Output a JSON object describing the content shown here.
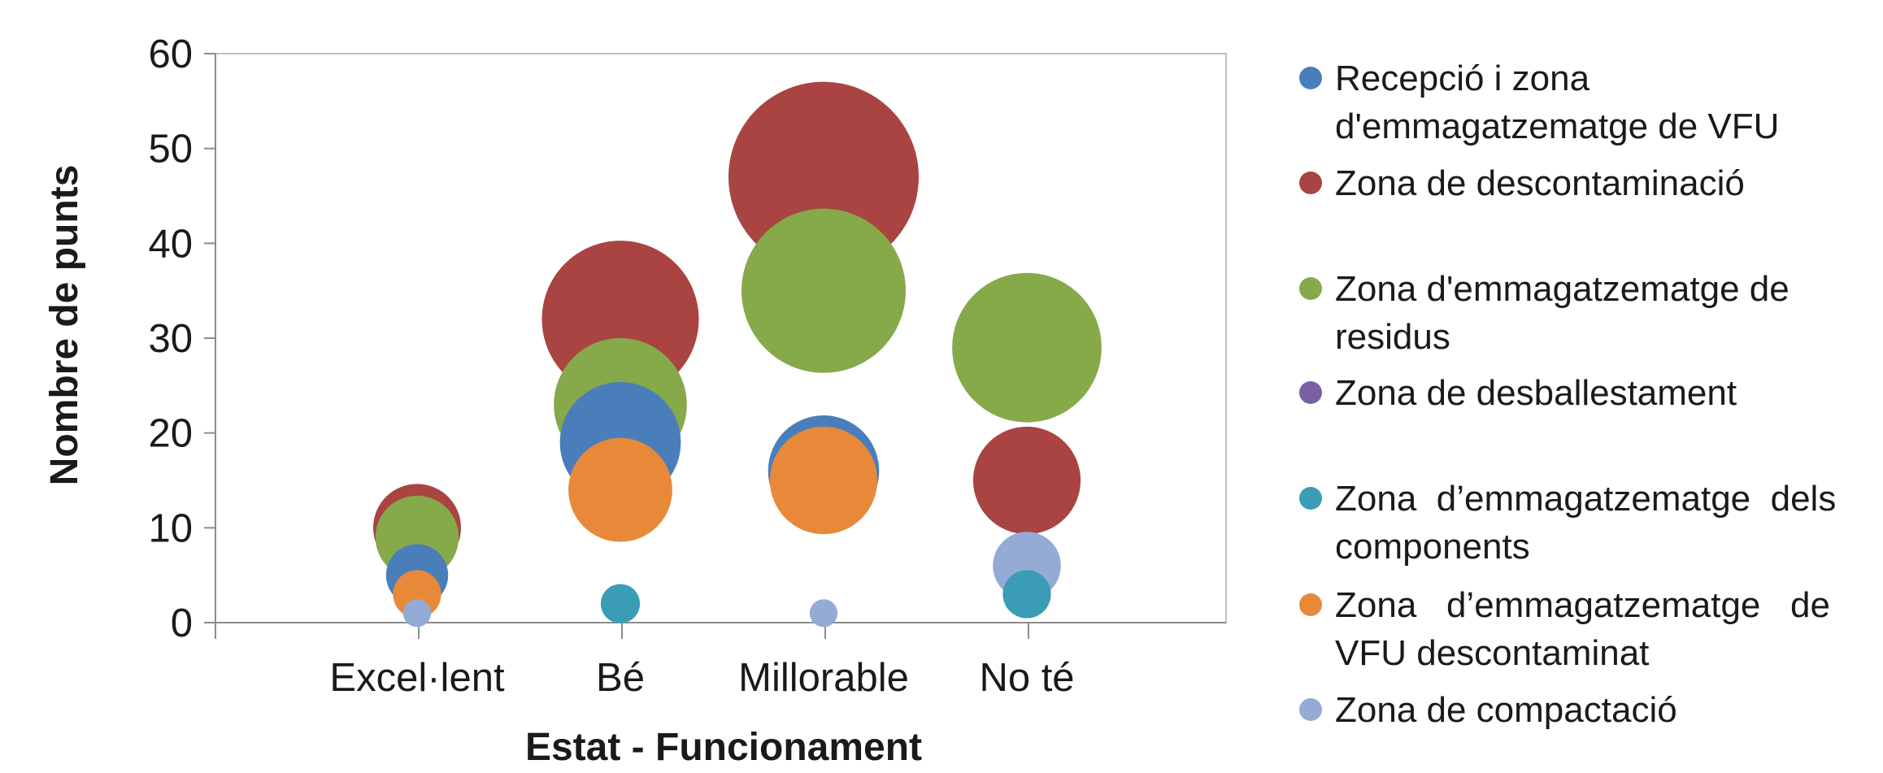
{
  "chart_data": {
    "type": "bubble",
    "title": "",
    "xlabel": "Estat - Funcionament",
    "ylabel": "Nombre de punts",
    "categories": [
      "Excel·lent",
      "Bé",
      "Millorable",
      "No té"
    ],
    "ylim": [
      0,
      60
    ],
    "yticks": [
      "0",
      "10",
      "20",
      "30",
      "40",
      "50",
      "60"
    ],
    "grid": false,
    "legend_position": "right",
    "series": [
      {
        "name": "Recepció i zona d'emmagatzematge de VFU",
        "legend_lines": [
          "Recepció i zona",
          "d'emmagatzematge de VFU"
        ],
        "color": "#4a7ebb",
        "values": [
          5,
          19,
          16,
          null
        ]
      },
      {
        "name": "Zona de descontaminació",
        "legend_lines": [
          "Zona de descontaminació"
        ],
        "color": "#a94442",
        "values": [
          10,
          32,
          47,
          15
        ]
      },
      {
        "name": "Zona d'emmagatzematge de residus",
        "legend_lines": [
          "Zona d'emmagatzematge de",
          "residus"
        ],
        "color": "#86a94a",
        "values": [
          9,
          23,
          35,
          29
        ]
      },
      {
        "name": "Zona de desballestament",
        "legend_lines": [
          "Zona de desballestament"
        ],
        "color": "#7a5fa3",
        "values": [
          null,
          null,
          null,
          null
        ]
      },
      {
        "name": "Zona d’emmagatzematge dels components",
        "legend_lines": [
          "Zona  d’emmagatzematge  dels",
          "components"
        ],
        "color": "#3a9db5",
        "values": [
          null,
          2,
          null,
          3
        ]
      },
      {
        "name": "Zona d’emmagatzematge de VFU descontaminat",
        "legend_lines": [
          "Zona   d’emmagatzematge   de",
          "VFU descontaminat"
        ],
        "color": "#e8893a",
        "values": [
          3,
          14,
          15,
          null
        ]
      },
      {
        "name": "Zona de compactació",
        "legend_lines": [
          "Zona de compactació"
        ],
        "color": "#94abd6",
        "values": [
          1,
          null,
          1,
          6
        ]
      }
    ]
  }
}
